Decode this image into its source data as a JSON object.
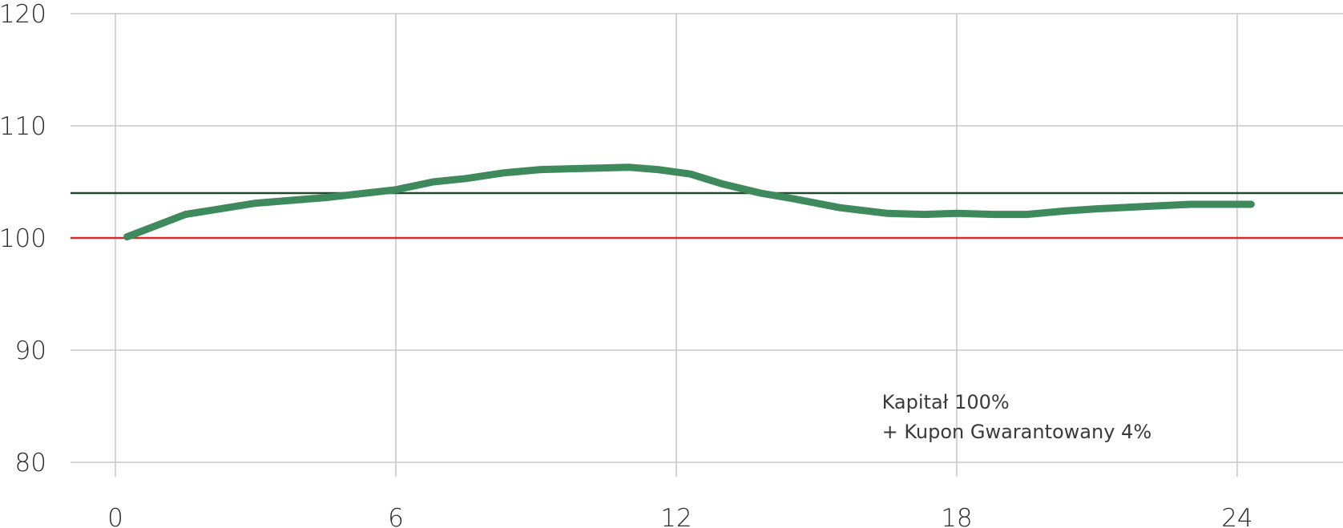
{
  "chart_data": {
    "type": "line",
    "title": "",
    "xlabel": "",
    "ylabel": "",
    "xlim": [
      -1,
      26
    ],
    "ylim": [
      80,
      120
    ],
    "x_ticks": [
      "0",
      "6",
      "12",
      "18",
      "24"
    ],
    "x_tick_values": [
      0,
      6,
      12,
      18,
      24
    ],
    "y_ticks": [
      "80",
      "90",
      "100",
      "110",
      "120"
    ],
    "y_tick_values": [
      80,
      90,
      100,
      110,
      120
    ],
    "grid": true,
    "series": [
      {
        "color": "#3f8a5c",
        "x": [
          0.25,
          1.5,
          3,
          4.5,
          6,
          6.8,
          7.5,
          8.3,
          9.1,
          10,
          11,
          11.6,
          12.3,
          13,
          13.8,
          14.5,
          15.5,
          16.5,
          17.3,
          18,
          18.8,
          19.5,
          20.3,
          21,
          22,
          23,
          24.3
        ],
        "y": [
          100.1,
          102.1,
          103.1,
          103.6,
          104.3,
          105.0,
          105.3,
          105.8,
          106.1,
          106.2,
          106.3,
          106.1,
          105.7,
          104.8,
          104.0,
          103.5,
          102.7,
          102.2,
          102.1,
          102.2,
          102.1,
          102.1,
          102.4,
          102.6,
          102.8,
          103.0,
          103.0
        ]
      }
    ],
    "reference_lines": [
      {
        "y": 104,
        "color": "#1f4a2e"
      },
      {
        "y": 100,
        "color": "#d42a2a"
      }
    ],
    "annotation": {
      "lines": [
        "Kapitał 100%",
        "+ Kupon Gwarantowany 4%"
      ],
      "x": 16.4,
      "y": 84.8
    }
  }
}
